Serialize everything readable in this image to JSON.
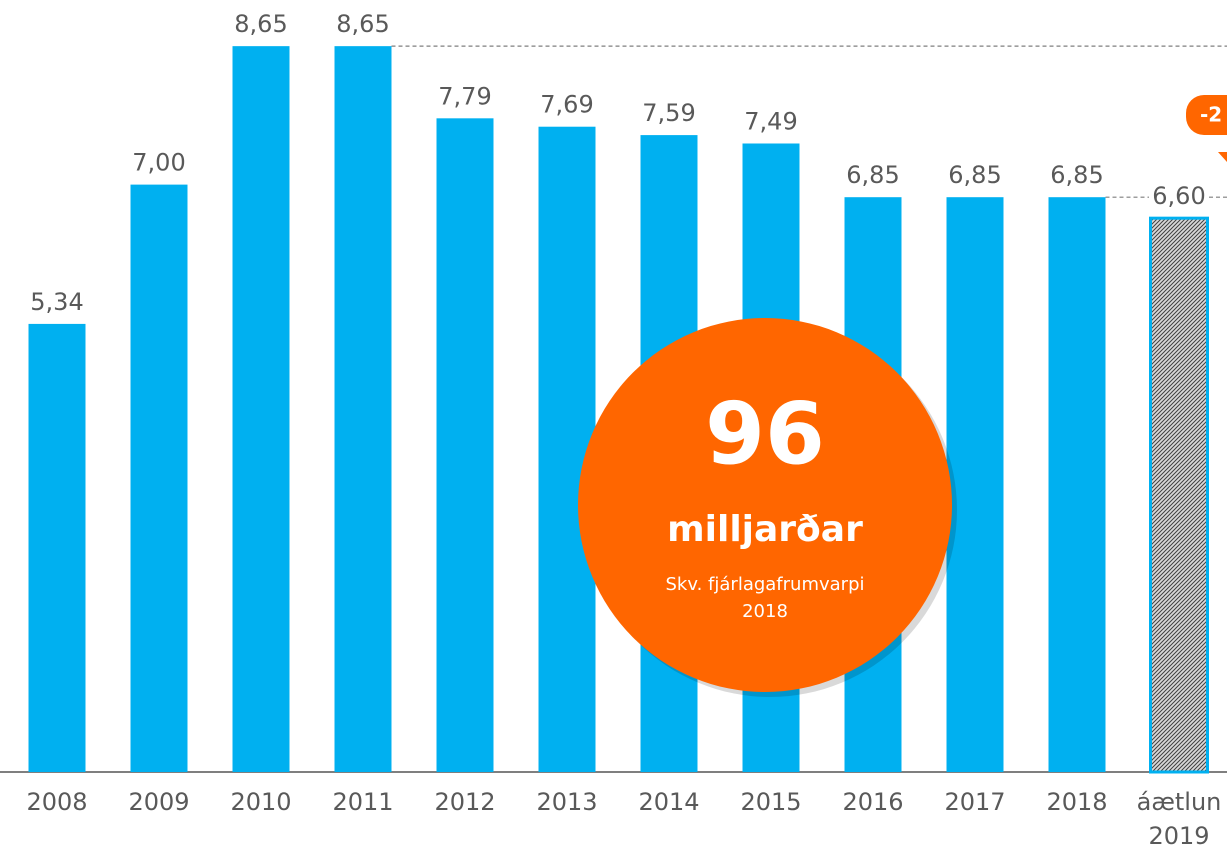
{
  "chart_data": {
    "type": "bar",
    "categories": [
      "2008",
      "2009",
      "2010",
      "2011",
      "2012",
      "2013",
      "2014",
      "2015",
      "2016",
      "2017",
      "2018",
      "áætlun 2019"
    ],
    "values": [
      5.34,
      7.0,
      8.65,
      8.65,
      7.79,
      7.69,
      7.59,
      7.49,
      6.85,
      6.85,
      6.85,
      6.6
    ],
    "value_labels": [
      "5,34",
      "7,00",
      "8,65",
      "8,65",
      "7,79",
      "7,69",
      "7,59",
      "7,49",
      "6,85",
      "6,85",
      "6,85",
      "6,60"
    ],
    "colors": [
      "#00b0f0",
      "#00b0f0",
      "#00b0f0",
      "#00b0f0",
      "#00b0f0",
      "#00b0f0",
      "#00b0f0",
      "#00b0f0",
      "#00b0f0",
      "#00b0f0",
      "#00b0f0",
      "hatch"
    ],
    "ylim": [
      0,
      9.2
    ],
    "annotation": {
      "big": "96",
      "unit": "milljarðar",
      "note": [
        "Skv. fjárlagafrumvarpi",
        "2018"
      ],
      "badge": "-2"
    }
  }
}
